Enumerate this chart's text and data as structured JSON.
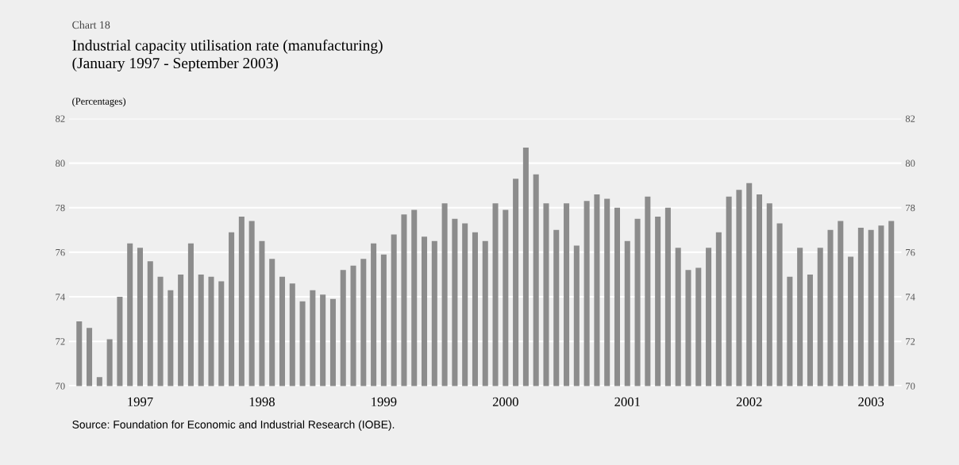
{
  "chart_data": {
    "type": "bar",
    "title": "Industrial capacity utilisation rate (manufacturing)\n(January 1997 - September 2003)",
    "subtitle": "(Percentages)",
    "annotations": [
      "Chart 18",
      "Source: Foundation for Economic and Industrial Research (IOBE)."
    ],
    "categories": [
      null,
      null,
      null,
      null,
      null,
      null,
      "1997",
      null,
      null,
      null,
      null,
      null,
      null,
      null,
      null,
      null,
      null,
      null,
      "1998",
      null,
      null,
      null,
      null,
      null,
      null,
      null,
      null,
      null,
      null,
      null,
      "1999",
      null,
      null,
      null,
      null,
      null,
      null,
      null,
      null,
      null,
      null,
      null,
      "2000",
      null,
      null,
      null,
      null,
      null,
      null,
      null,
      null,
      null,
      null,
      null,
      "2001",
      null,
      null,
      null,
      null,
      null,
      null,
      null,
      null,
      null,
      null,
      null,
      "2002",
      null,
      null,
      null,
      null,
      null,
      null,
      null,
      null,
      null,
      null,
      null,
      "2003",
      null,
      null
    ],
    "values": [
      72.9,
      72.6,
      70.4,
      72.1,
      74.0,
      76.4,
      76.2,
      75.6,
      74.9,
      74.3,
      75.0,
      76.4,
      75.0,
      74.9,
      74.7,
      76.9,
      77.6,
      77.4,
      76.5,
      75.7,
      74.9,
      74.6,
      73.8,
      74.3,
      74.1,
      73.9,
      75.2,
      75.4,
      75.7,
      76.4,
      75.9,
      76.8,
      77.7,
      77.9,
      76.7,
      76.5,
      78.2,
      77.5,
      77.3,
      76.9,
      76.5,
      78.2,
      77.9,
      79.3,
      80.7,
      79.5,
      78.2,
      77.0,
      78.2,
      76.3,
      78.3,
      78.6,
      78.4,
      78.0,
      76.5,
      77.5,
      78.5,
      77.6,
      78.0,
      76.2,
      75.2,
      75.3,
      76.2,
      76.9,
      78.5,
      78.8,
      79.1,
      78.6,
      78.2,
      77.3,
      74.9,
      76.2,
      75.0,
      76.2,
      77.0,
      77.4,
      75.8,
      77.1,
      77.0,
      77.2,
      77.4
    ],
    "color": "#8c8c8c",
    "ylim": [
      70,
      82
    ],
    "yticks": [
      70,
      72,
      74,
      76,
      78,
      80,
      82
    ],
    "y2lim": [
      70,
      82
    ],
    "y2ticks": [
      70,
      72,
      74,
      76,
      78,
      80,
      82
    ],
    "grid": "y",
    "legend": false
  }
}
